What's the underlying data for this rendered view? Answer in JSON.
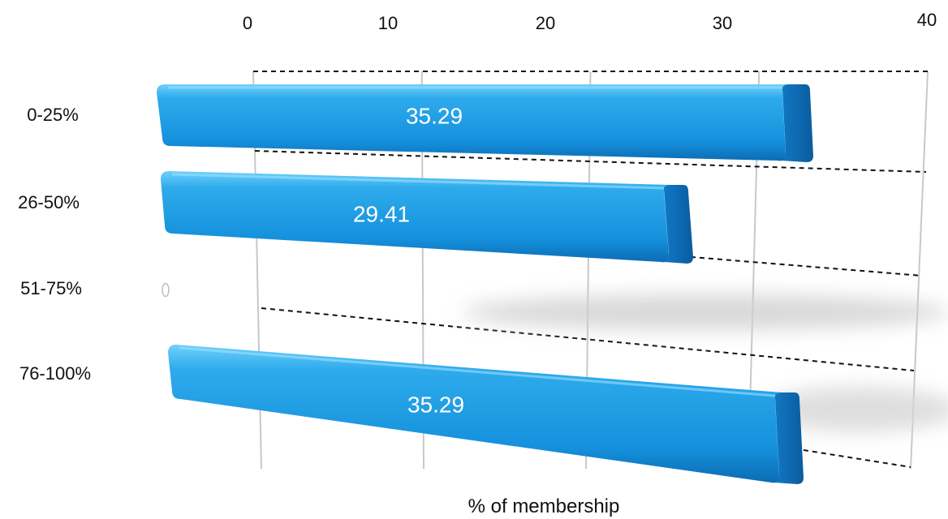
{
  "chart_data": {
    "type": "bar",
    "orientation": "horizontal",
    "categories": [
      "0-25%",
      "26-50%",
      "51-75%",
      "76-100%"
    ],
    "values": [
      35.29,
      29.41,
      0,
      35.29
    ],
    "data_labels": [
      "35.29",
      "29.41",
      "0",
      "35.29"
    ],
    "xlabel": "% of membership",
    "xlim": [
      0,
      40
    ],
    "x_ticks": [
      "0",
      "10",
      "20",
      "30",
      "40"
    ],
    "grid": true,
    "style": "3d",
    "colors": {
      "bar": "#1a9ee6",
      "bar_light": "#4fc0f7",
      "bar_dark": "#0b6fb8"
    }
  }
}
